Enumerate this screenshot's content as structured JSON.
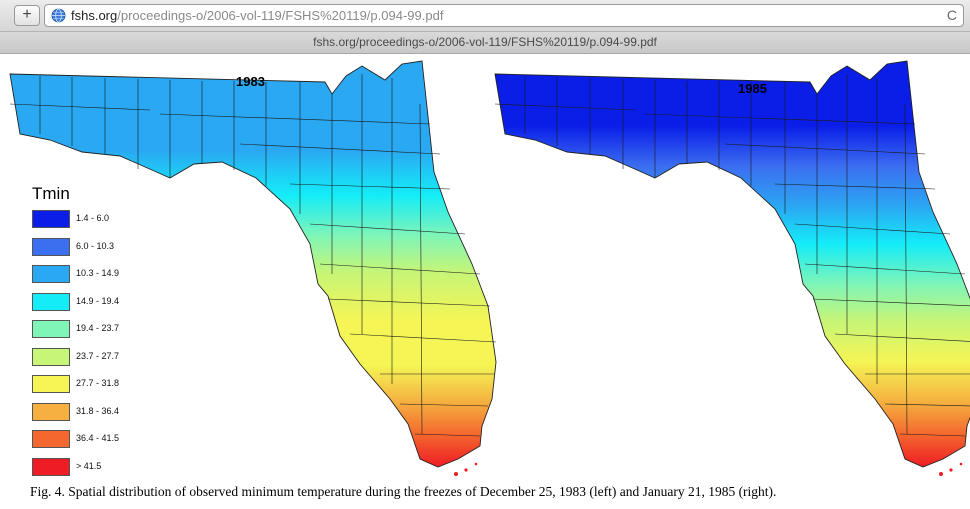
{
  "browser": {
    "url_host": "fshs.org",
    "url_path": "/proceedings-o/2006-vol-119/FSHS%20119/p.094-99.pdf",
    "document_title": "fshs.org/proceedings-o/2006-vol-119/FSHS%20119/p.094-99.pdf",
    "add_tab_label": "+",
    "reload_label": "C"
  },
  "maps": [
    {
      "year": "1983"
    },
    {
      "year": "1985"
    }
  ],
  "legend": {
    "title": "Tmin",
    "items": [
      {
        "label": "1.4 - 6.0",
        "color": "#0a1ee8"
      },
      {
        "label": "6.0 - 10.3",
        "color": "#3c6ef0"
      },
      {
        "label": "10.3 - 14.9",
        "color": "#2aa8f2"
      },
      {
        "label": "14.9 - 19.4",
        "color": "#14ecf8"
      },
      {
        "label": "19.4 - 23.7",
        "color": "#7ff5b8"
      },
      {
        "label": "23.7 - 27.7",
        "color": "#c6f577"
      },
      {
        "label": "27.7 - 31.8",
        "color": "#f5f555"
      },
      {
        "label": "31.8 - 36.4",
        "color": "#f5b040"
      },
      {
        "label": "36.4 - 41.5",
        "color": "#f4672e"
      },
      {
        "label": "> 41.5",
        "color": "#ee1c24"
      }
    ]
  },
  "caption": "Fig. 4. Spatial distribution of observed minimum temperature during the freezes of December 25, 1983 (left) and January 21, 1985 (right)."
}
